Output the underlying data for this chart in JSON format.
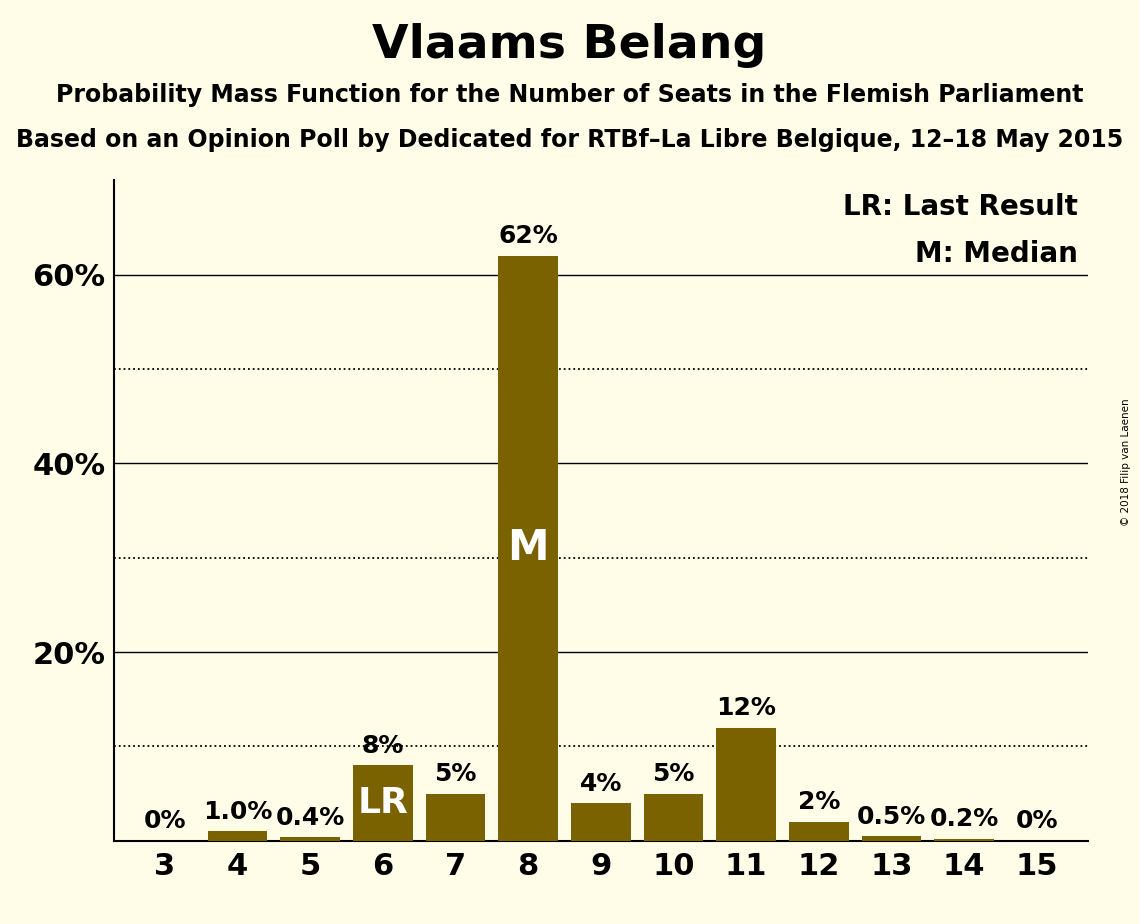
{
  "title": "Vlaams Belang",
  "subtitle1": "Probability Mass Function for the Number of Seats in the Flemish Parliament",
  "subtitle2": "Based on an Opinion Poll by Dedicated for RTBf–La Libre Belgique, 12–18 May 2015",
  "watermark": "© 2018 Filip van Laenen",
  "categories": [
    3,
    4,
    5,
    6,
    7,
    8,
    9,
    10,
    11,
    12,
    13,
    14,
    15
  ],
  "values": [
    0.0,
    1.0,
    0.4,
    8.0,
    5.0,
    62.0,
    4.0,
    5.0,
    12.0,
    2.0,
    0.5,
    0.2,
    0.0
  ],
  "bar_labels": [
    "0%",
    "1.0%",
    "0.4%",
    "8%",
    "5%",
    "62%",
    "4%",
    "5%",
    "12%",
    "2%",
    "0.5%",
    "0.2%",
    "0%"
  ],
  "bar_color": "#7a6200",
  "background_color": "#fffde8",
  "median_idx": 5,
  "lr_idx": 3,
  "legend_lr": "LR: Last Result",
  "legend_m": "M: Median",
  "ylim": [
    0,
    70
  ],
  "solid_lines": [
    20,
    40,
    60
  ],
  "dotted_lines": [
    10,
    30,
    50
  ],
  "ytick_positions": [
    0,
    20,
    40,
    60
  ],
  "ytick_labels": [
    "",
    "20%",
    "40%",
    "60%"
  ],
  "title_fontsize": 34,
  "subtitle_fontsize": 17,
  "tick_fontsize": 22,
  "bar_label_fontsize": 18,
  "legend_fontsize": 20,
  "inside_label_fontsize": 26
}
